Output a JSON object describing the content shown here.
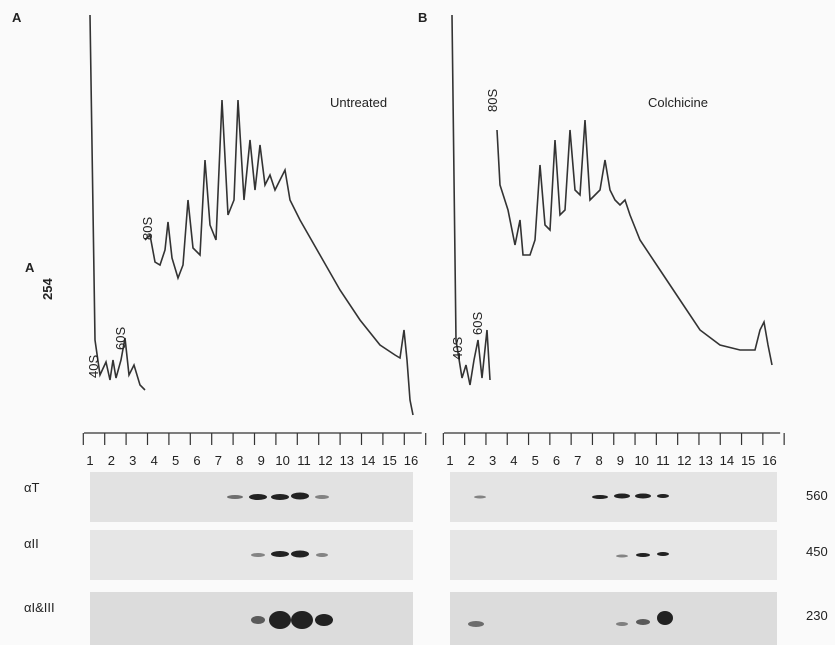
{
  "y_label": {
    "main": "A",
    "sub": "254"
  },
  "panels": [
    {
      "letter": "A",
      "condition": "Untreated",
      "peaks": [
        "40S",
        "60S",
        "80S"
      ],
      "fractions": [
        1,
        2,
        3,
        4,
        5,
        6,
        7,
        8,
        9,
        10,
        11,
        12,
        13,
        14,
        15,
        16
      ]
    },
    {
      "letter": "B",
      "condition": "Colchicine",
      "peaks": [
        "40S",
        "60S",
        "80S"
      ],
      "fractions": [
        1,
        2,
        3,
        4,
        5,
        6,
        7,
        8,
        9,
        10,
        11,
        12,
        13,
        14,
        15,
        16
      ]
    }
  ],
  "blots": [
    {
      "probe": "αT",
      "size": "560"
    },
    {
      "probe": "αII",
      "size": "450"
    },
    {
      "probe": "αI&III",
      "size": "230"
    }
  ]
}
